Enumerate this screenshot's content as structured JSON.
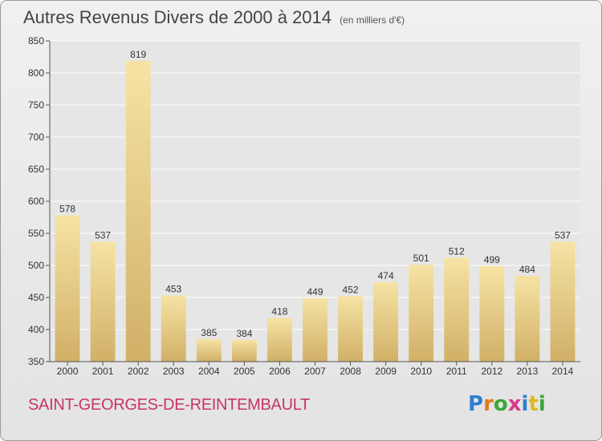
{
  "title": "Autres Revenus Divers de 2000 à 2014",
  "subtitle": "(en milliers d'€)",
  "footer_name": "SAINT-GEORGES-DE-REINTEMBAULT",
  "logo": {
    "text": "Proxiti",
    "letters": [
      "P",
      "r",
      "o",
      "x",
      "i",
      "t",
      "i"
    ],
    "colors": [
      "#2f7fd0",
      "#e07a1e",
      "#3aa83a",
      "#d63a8a",
      "#2f7fd0",
      "#e0b81e",
      "#3aa83a"
    ]
  },
  "colors": {
    "bar_light": "#f6e3a4",
    "bar_dark": "#d1b067",
    "grid": "#ffffff",
    "title_text": "#444444",
    "footer_text": "#c8346a"
  },
  "chart_data": {
    "type": "bar",
    "categories": [
      "2000",
      "2001",
      "2002",
      "2003",
      "2004",
      "2005",
      "2006",
      "2007",
      "2008",
      "2009",
      "2010",
      "2011",
      "2012",
      "2013",
      "2014"
    ],
    "values": [
      578,
      537,
      819,
      453,
      385,
      384,
      418,
      449,
      452,
      474,
      501,
      512,
      499,
      484,
      537
    ],
    "ylim": [
      350,
      850
    ],
    "yticks": [
      350,
      400,
      450,
      500,
      550,
      600,
      650,
      700,
      750,
      800,
      850
    ],
    "grid": true,
    "data_labels": true
  }
}
